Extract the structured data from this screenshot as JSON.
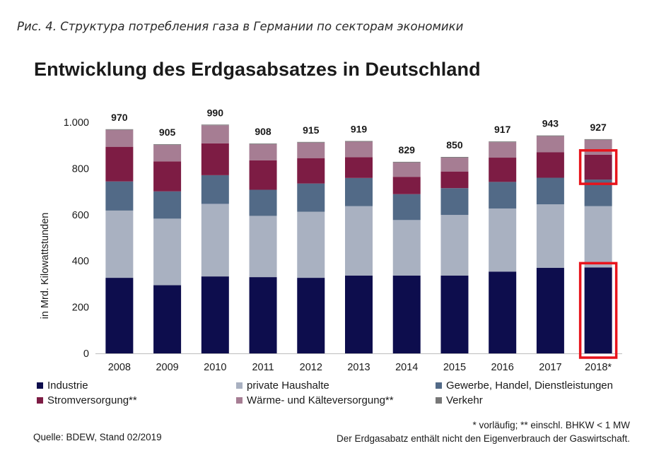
{
  "figure_caption": "Рис. 4. Структура потребления газа в Германии по секторам экономики",
  "source": "Quelle: BDEW, Stand 02/2019",
  "footnote_1": "* vorläufig; ** einschl. BHKW < 1 MW",
  "footnote_2": "Der Erdgasabatz enthält nicht den Eigenverbrauch der Gaswirtschaft.",
  "colors": {
    "highlight_box": "#e8141c",
    "axis": "#bdbdbd"
  },
  "chart_data": {
    "type": "bar",
    "stacked": true,
    "title": "Entwicklung des Erdgasabsatzes in Deutschland",
    "xlabel": "",
    "ylabel": "in Mrd. Kilowattstunden",
    "ylim": [
      0,
      1000
    ],
    "yticks": [
      0,
      200,
      400,
      600,
      800,
      1000
    ],
    "ytick_labels": [
      "0",
      "200",
      "400",
      "600",
      "800",
      "1.000"
    ],
    "grid": false,
    "legend_position": "bottom",
    "categories": [
      "2008",
      "2009",
      "2010",
      "2011",
      "2012",
      "2013",
      "2014",
      "2015",
      "2016",
      "2017",
      "2018*"
    ],
    "totals": [
      970,
      905,
      990,
      908,
      915,
      919,
      829,
      850,
      917,
      943,
      927
    ],
    "total_labels": [
      "970",
      "905",
      "990",
      "908",
      "915",
      "919",
      "829",
      "850",
      "917",
      "943",
      "927"
    ],
    "series": [
      {
        "name": "Industrie",
        "color": "#0d0d4d",
        "values": [
          327,
          295,
          333,
          330,
          327,
          337,
          337,
          337,
          354,
          370,
          372
        ]
      },
      {
        "name": "private Haushalte",
        "color": "#a9b1c1",
        "values": [
          291,
          288,
          314,
          265,
          286,
          300,
          240,
          262,
          273,
          275,
          265
        ]
      },
      {
        "name": "Gewerbe, Handel, Dienstleistungen",
        "color": "#526a87",
        "values": [
          126,
          118,
          124,
          113,
          122,
          122,
          112,
          116,
          115,
          115,
          115
        ]
      },
      {
        "name": "Stromversorgung**",
        "color": "#7d1c44",
        "values": [
          150,
          130,
          138,
          127,
          110,
          90,
          75,
          72,
          105,
          110,
          108
        ]
      },
      {
        "name": "Wärme- und Kälteversorgung**",
        "color": "#a67d93",
        "values": [
          73,
          71,
          78,
          70,
          67,
          67,
          62,
          60,
          67,
          70,
          64
        ]
      },
      {
        "name": "Verkehr",
        "color": "#777777",
        "values": [
          3,
          3,
          3,
          3,
          3,
          3,
          3,
          3,
          3,
          3,
          3
        ]
      }
    ],
    "highlights": [
      {
        "category": "2018*",
        "series": "Stromversorgung**"
      },
      {
        "category": "2018*",
        "series": "Industrie"
      }
    ]
  }
}
